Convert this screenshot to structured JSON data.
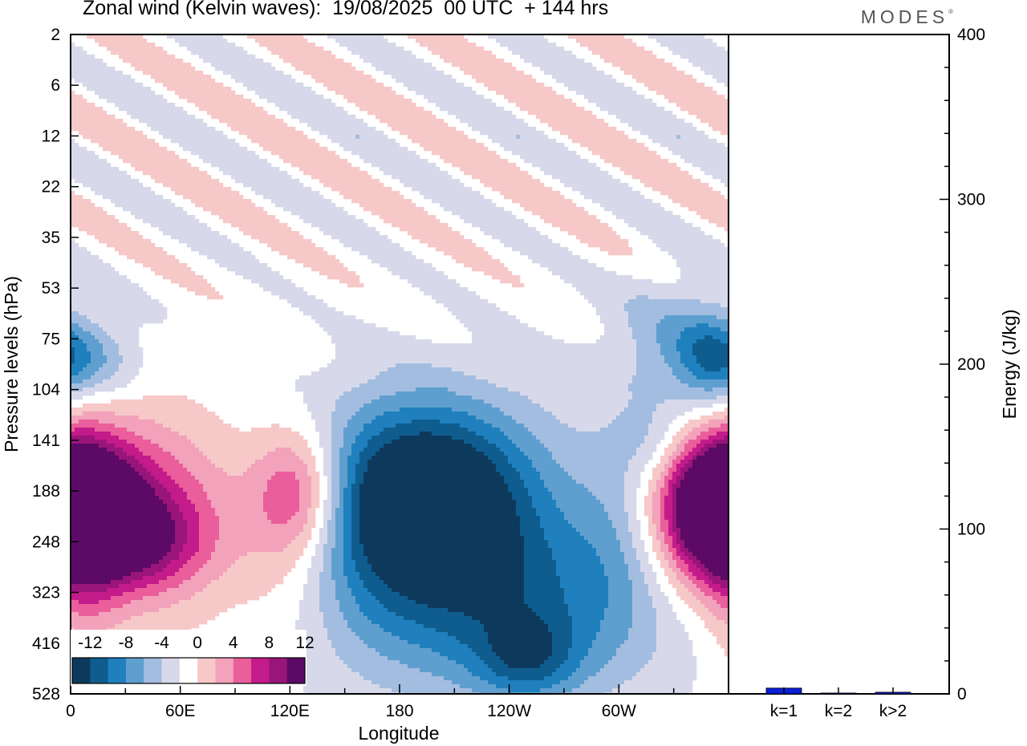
{
  "header": {
    "title": "Zonal wind (Kelvin waves):  19/08/2025  00 UTC  + 144 hrs",
    "logo": "MODES"
  },
  "colors": {
    "scale": [
      "#0d3a5c",
      "#0f5d8f",
      "#1f80bd",
      "#5f9fcf",
      "#a3bde0",
      "#d7d9ea",
      "#ffffff",
      "#f7c8c8",
      "#f3a2bc",
      "#ea5f9b",
      "#c41b8a",
      "#99157a",
      "#5c0a66"
    ],
    "axis": "#000000",
    "bar": "#0a1fd6"
  },
  "chart_data": [
    {
      "type": "heatmap",
      "title": "Zonal wind (Kelvin waves)",
      "xlabel": "Longitude",
      "ylabel": "Pressure levels (hPa)",
      "x_ticks": [
        "0",
        "60E",
        "120E",
        "180",
        "120W",
        "60W"
      ],
      "x_range_deg": [
        0,
        360
      ],
      "y_ticks": [
        "2",
        "6",
        "12",
        "22",
        "35",
        "53",
        "75",
        "104",
        "141",
        "188",
        "248",
        "323",
        "416",
        "528"
      ],
      "colorbar": {
        "labels": [
          "-12",
          "-8",
          "-4",
          "0",
          "4",
          "8",
          "12"
        ],
        "bins": 13
      },
      "cells": [
        {
          "lon": 20,
          "lev": 9.5,
          "sx": 50,
          "sy": 1.3,
          "val": 10
        },
        {
          "lon": 35,
          "lev": 10,
          "sx": 25,
          "sy": 0.6,
          "val": 6
        },
        {
          "lon": 125,
          "lev": 9.0,
          "sx": 18,
          "sy": 0.9,
          "val": 9
        },
        {
          "lon": 8,
          "lev": 9.3,
          "sx": 20,
          "sy": 0.7,
          "val": 10
        },
        {
          "lon": 8,
          "lev": 10.3,
          "sx": 14,
          "sy": 1.8,
          "val": 3
        },
        {
          "lon": 120,
          "lev": 10.5,
          "sx": 22,
          "sy": 1.2,
          "val": 3
        },
        {
          "lon": 185,
          "lev": 9.2,
          "sx": 45,
          "sy": 1.4,
          "val": -9.5
        },
        {
          "lon": 200,
          "lev": 8.9,
          "sx": 30,
          "sy": 1.0,
          "val": -4
        },
        {
          "lon": 215,
          "lev": 10.0,
          "sx": 70,
          "sy": 2.0,
          "val": -5
        },
        {
          "lon": 250,
          "lev": 11.3,
          "sx": 70,
          "sy": 1.3,
          "val": -5
        },
        {
          "lon": 250,
          "lev": 12.3,
          "sx": 20,
          "sy": 0.6,
          "val": -6
        },
        {
          "lon": 352,
          "lev": 9.3,
          "sx": 20,
          "sy": 1.0,
          "val": 10
        },
        {
          "lon": 350,
          "lev": 6.5,
          "sx": 12,
          "sy": 0.8,
          "val": -3
        },
        {
          "lon": 300,
          "lev": 9.5,
          "sx": 18,
          "sy": 1.4,
          "val": -3
        },
        {
          "lon": 5,
          "lev": 6.4,
          "sx": 22,
          "sy": 0.6,
          "val": -6
        },
        {
          "lon": 330,
          "lev": 6.0,
          "sx": 25,
          "sy": 1.0,
          "val": -4
        },
        {
          "lon": 320,
          "lev": 8.0,
          "sx": 15,
          "sy": 0.6,
          "val": -3
        }
      ]
    },
    {
      "type": "bar",
      "ylabel": "Energy (J/kg)",
      "categories": [
        "k=1",
        "k=2",
        "k>2"
      ],
      "values": [
        3.5,
        0.5,
        1.0
      ],
      "ylim": [
        0,
        400
      ],
      "y_ticks": [
        "0",
        "100",
        "200",
        "300",
        "400"
      ]
    }
  ]
}
